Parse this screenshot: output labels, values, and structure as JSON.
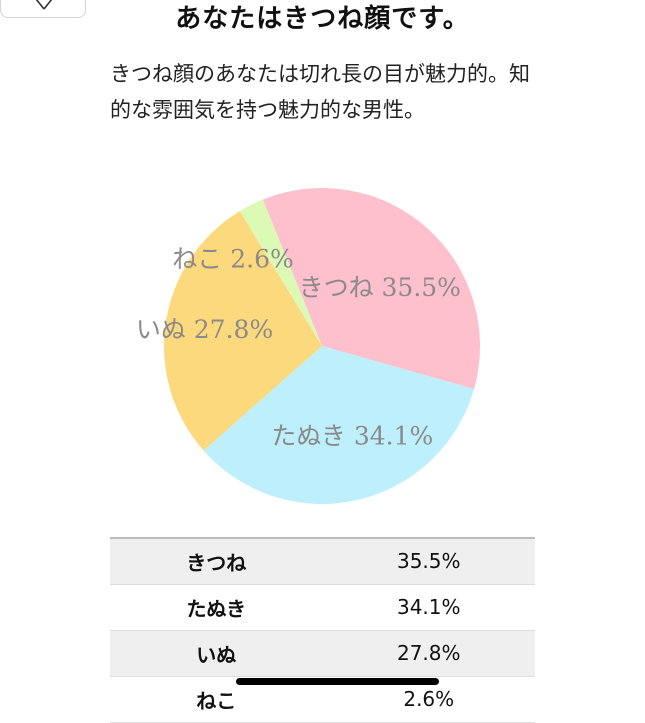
{
  "header": {
    "back_icon": "close-icon"
  },
  "result": {
    "title": "あなたはきつね顔です。",
    "description": "きつね顔のあなたは切れ長の目が魅力的。知的な雰囲気を持つ魅力的な男性。"
  },
  "chart_data": {
    "type": "pie",
    "labels": [
      "きつね",
      "たぬき",
      "いぬ",
      "ねこ"
    ],
    "values": [
      35.5,
      34.1,
      27.8,
      2.6
    ],
    "slice_labels": [
      "きつね 35.5%",
      "たぬき 34.1%",
      "いぬ 27.8%",
      "ねこ 2.6%"
    ],
    "colors": [
      "#fec0cd",
      "#bdeffc",
      "#fcd97c",
      "#dcfab5"
    ]
  },
  "table": {
    "rows": [
      {
        "name": "きつね",
        "pct": "35.5%"
      },
      {
        "name": "たぬき",
        "pct": "34.1%"
      },
      {
        "name": "いぬ",
        "pct": "27.8%"
      },
      {
        "name": "ねこ",
        "pct": "2.6%"
      }
    ]
  }
}
